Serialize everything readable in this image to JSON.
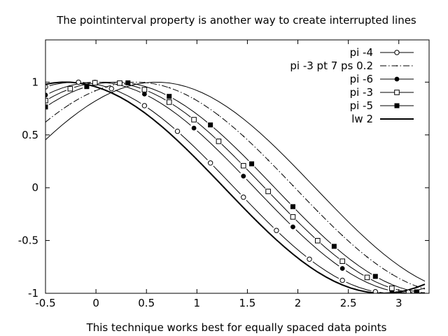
{
  "chart_data": {
    "type": "line",
    "title": "The pointinterval property is another way to create interrupted lines",
    "xlabel": "This technique works best for equally spaced data points",
    "ylabel": "",
    "xlim": [
      -0.5,
      3.3
    ],
    "ylim": [
      -1,
      1.4
    ],
    "x_ticks": [
      "-0.5",
      "0",
      "0.5",
      "1",
      "1.5",
      "2",
      "2.5",
      "3"
    ],
    "y_ticks": [
      "-1",
      "-0.5",
      "0",
      "0.5",
      "1"
    ],
    "x_tick_values": [
      -0.5,
      0,
      0.5,
      1,
      1.5,
      2,
      2.5,
      3
    ],
    "y_tick_values": [
      -1,
      -0.5,
      0,
      0.5,
      1
    ],
    "grid": false,
    "legend_position": "top-right",
    "curve": "y = cos(x + offset), sampled every 0.0817 from x = -0.5",
    "series": [
      {
        "name": "pi -4",
        "offset": 0.2,
        "marker": "open-circle",
        "point_interval": 4,
        "line_style": "solid",
        "line_width": 1
      },
      {
        "name": "pi -3 pt 7 ps 0.2",
        "offset": -0.4,
        "marker": "tiny-filled-circle",
        "point_interval": 3,
        "line_style": "dash-dot",
        "line_width": 1
      },
      {
        "name": "pi -6",
        "offset": 0.0,
        "marker": "filled-circle",
        "point_interval": 6,
        "line_style": "solid",
        "line_width": 1
      },
      {
        "name": "pi -3",
        "offset": -0.1,
        "marker": "open-square",
        "point_interval": 3,
        "line_style": "solid",
        "line_width": 1
      },
      {
        "name": "pi -5",
        "offset": -0.2,
        "marker": "filled-square",
        "point_interval": 5,
        "line_style": "solid",
        "line_width": 1
      },
      {
        "name": "lw 2",
        "offset": 0.3,
        "marker": "none",
        "point_interval": 0,
        "line_style": "solid",
        "line_width": 2
      },
      {
        "name": "",
        "offset": -0.6,
        "marker": "none",
        "point_interval": 0,
        "line_style": "solid",
        "line_width": 1
      }
    ]
  }
}
